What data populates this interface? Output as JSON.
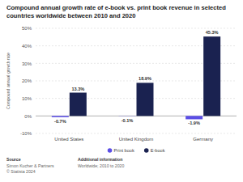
{
  "chart_data": {
    "type": "bar",
    "title": "Compound annual growth rate of e-book vs. print book revenue in selected countries worldwide between 2010 and 2020",
    "y_label": "Compound annual growth rate",
    "categories": [
      "United States",
      "United Kingdom",
      "Germany"
    ],
    "series": [
      {
        "name": "Print book",
        "color": "#5b4ee6",
        "values": [
          -0.7,
          -0.1,
          -1.9
        ],
        "value_labels": [
          "-0.7%",
          "-0.1%",
          "-1.9%"
        ]
      },
      {
        "name": "E-book",
        "color": "#1a2250",
        "values": [
          13.3,
          18.9,
          45.3
        ],
        "value_labels": [
          "13.3%",
          "18.9%",
          "45.3%"
        ]
      }
    ],
    "ylim": [
      -10,
      50
    ],
    "yticks": [
      {
        "value": -10,
        "label": "-10%"
      },
      {
        "value": 0,
        "label": "0%"
      },
      {
        "value": 10,
        "label": "10%"
      },
      {
        "value": 20,
        "label": "20%"
      },
      {
        "value": 30,
        "label": "30%"
      },
      {
        "value": 40,
        "label": "40%"
      },
      {
        "value": 50,
        "label": "50%"
      }
    ],
    "grid": true,
    "legend": "bottom",
    "data_labels": true,
    "annotations": [
      "Source",
      "Simon Kucher & Partners",
      "© Statista 2024",
      "Additional information",
      "Worldwide; 2010 to 2020"
    ]
  }
}
